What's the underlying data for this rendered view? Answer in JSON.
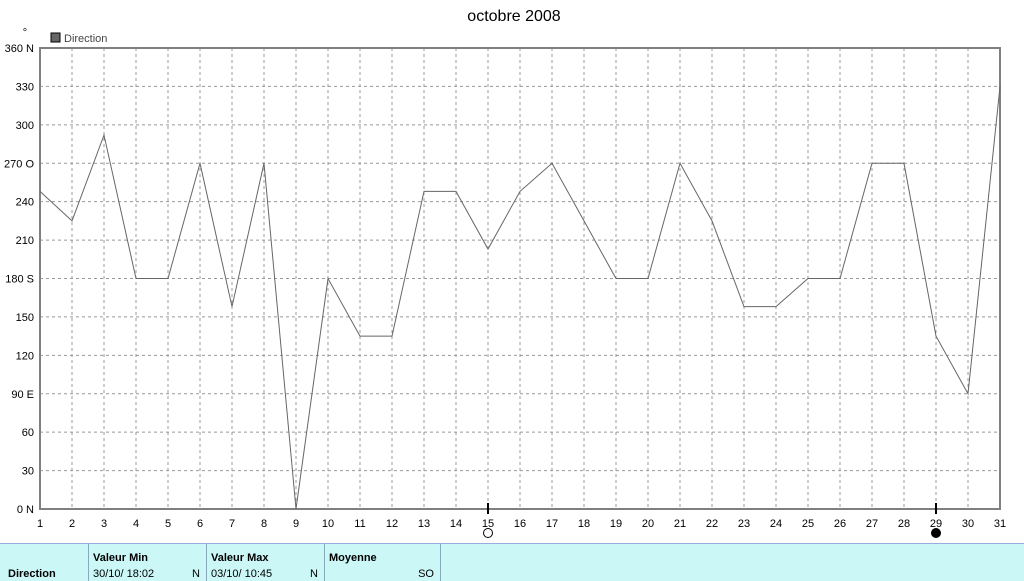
{
  "chart_data": {
    "type": "line",
    "title": "octobre 2008",
    "y_unit_symbol": "°",
    "legend": [
      {
        "name": "Direction",
        "color": "#666666"
      }
    ],
    "ylim": [
      0,
      360
    ],
    "xlim": [
      1,
      31
    ],
    "y_ticks": [
      {
        "value": 0,
        "label": "0",
        "dir": "N"
      },
      {
        "value": 30,
        "label": "30",
        "dir": ""
      },
      {
        "value": 60,
        "label": "60",
        "dir": ""
      },
      {
        "value": 90,
        "label": "90",
        "dir": "E"
      },
      {
        "value": 120,
        "label": "120",
        "dir": ""
      },
      {
        "value": 150,
        "label": "150",
        "dir": ""
      },
      {
        "value": 180,
        "label": "180",
        "dir": "S"
      },
      {
        "value": 210,
        "label": "210",
        "dir": ""
      },
      {
        "value": 240,
        "label": "240",
        "dir": ""
      },
      {
        "value": 270,
        "label": "270",
        "dir": "O"
      },
      {
        "value": 300,
        "label": "300",
        "dir": ""
      },
      {
        "value": 330,
        "label": "330",
        "dir": ""
      },
      {
        "value": 360,
        "label": "360",
        "dir": "N"
      }
    ],
    "x_ticks": [
      "1",
      "2",
      "3",
      "4",
      "5",
      "6",
      "7",
      "8",
      "9",
      "10",
      "11",
      "12",
      "13",
      "14",
      "15",
      "16",
      "17",
      "18",
      "19",
      "20",
      "21",
      "22",
      "23",
      "24",
      "25",
      "26",
      "27",
      "28",
      "29",
      "30",
      "31"
    ],
    "grid": true,
    "moon_phases": [
      {
        "day": 15,
        "phase": "full"
      },
      {
        "day": 29,
        "phase": "new"
      }
    ],
    "series": [
      {
        "name": "Direction",
        "color": "#666666",
        "x": [
          1,
          2,
          3,
          4,
          5,
          6,
          7,
          8,
          9,
          10,
          11,
          12,
          13,
          14,
          15,
          16,
          17,
          18,
          19,
          20,
          21,
          22,
          23,
          24,
          25,
          26,
          27,
          28,
          29,
          30,
          31
        ],
        "values": [
          248,
          225,
          292,
          180,
          180,
          270,
          158,
          270,
          0,
          180,
          135,
          135,
          248,
          248,
          203,
          248,
          270,
          225,
          180,
          180,
          270,
          225,
          158,
          158,
          180,
          180,
          270,
          270,
          135,
          90,
          330
        ]
      }
    ]
  },
  "footer": {
    "series_label": "Direction",
    "min_header": "Valeur Min",
    "min_date": "30/10/  18:02",
    "min_dir": "N",
    "max_header": "Valeur Max",
    "max_date": "03/10/  10:45",
    "max_dir": "N",
    "avg_header": "Moyenne",
    "avg_dir": "SO"
  }
}
